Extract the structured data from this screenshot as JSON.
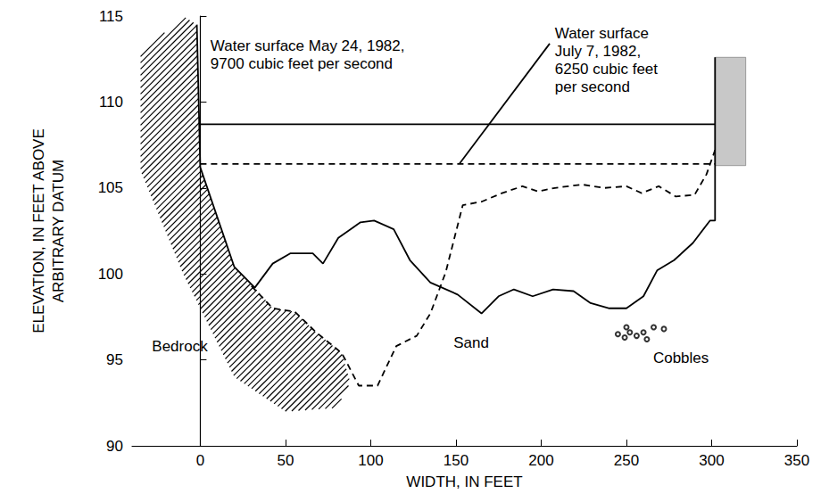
{
  "chart_data": {
    "type": "line",
    "x_label": "WIDTH, IN FEET",
    "y_label": "ELEVATION, IN FEET ABOVE\nARBITRARY DATUM",
    "xlim": [
      -40,
      350
    ],
    "xticks": [
      0,
      50,
      100,
      150,
      200,
      250,
      300,
      350
    ],
    "ylim": [
      90,
      115
    ],
    "yticks": [
      90,
      95,
      100,
      105,
      110,
      115
    ],
    "grid": false,
    "series": [
      {
        "x": [
          -2,
          0,
          20,
          32,
          42.5,
          53,
          66,
          72,
          81,
          94,
          102,
          113.5,
          123,
          135,
          151,
          165,
          175,
          184,
          195,
          207,
          219,
          229,
          240,
          250,
          260,
          268,
          278,
          289,
          299,
          302,
          302
        ],
        "values": [
          114.5,
          106.2,
          100.4,
          99.2,
          100.6,
          101.2,
          101.2,
          100.6,
          102.1,
          103,
          103.1,
          102.6,
          100.8,
          99.5,
          98.8,
          97.7,
          98.7,
          99.1,
          98.7,
          99.1,
          99,
          98.3,
          98,
          98,
          98.7,
          100.2,
          100.8,
          101.8,
          103.1,
          103.1,
          112.6
        ],
        "line_style": "solid",
        "color": "#000000"
      },
      {
        "x": [
          30,
          42.5,
          55.5,
          68,
          83,
          93,
          104,
          115,
          127,
          135,
          144,
          154,
          165,
          177,
          189,
          198,
          208,
          224,
          237,
          250,
          259,
          269,
          279,
          290,
          297,
          302
        ],
        "values": [
          99.3,
          98,
          97.8,
          96.6,
          95.4,
          93.5,
          93.5,
          95.8,
          96.4,
          97.7,
          100.1,
          104,
          104.2,
          104.7,
          105.1,
          104.8,
          105,
          105.2,
          105,
          105.1,
          104.7,
          105.1,
          104.5,
          104.6,
          105.8,
          107.2
        ],
        "line_style": "dashed",
        "color": "#000000"
      },
      {
        "x": [
          0,
          302
        ],
        "values": [
          108.7,
          108.7
        ],
        "line_style": "solid",
        "color": "#000000"
      },
      {
        "x": [
          0,
          302
        ],
        "values": [
          106.4,
          106.4
        ],
        "line_style": "dashed",
        "color": "#000000"
      },
      {
        "x": [
          152,
          205
        ],
        "values": [
          106.4,
          113.4
        ],
        "line_style": "solid",
        "color": "#000000"
      }
    ],
    "annotations": [
      {
        "text": "Water surface May 24, 1982,\n9700 cubic feet per second",
        "x": 6,
        "y": 113.8
      },
      {
        "text": "Water surface\nJuly 7, 1982,\n6250 cubic feet\nper second",
        "x": 208,
        "y": 114.5
      }
    ],
    "labels": [
      {
        "text": "Bedrock",
        "x": -12,
        "y": 95.8
      },
      {
        "text": "Sand",
        "x": 159,
        "y": 96
      },
      {
        "text": "Cobbles",
        "x": 282,
        "y": 95.1
      }
    ],
    "bedrock": [
      [
        -2,
        114.5
      ],
      [
        0,
        106.2
      ],
      [
        20,
        100.4
      ],
      [
        32,
        99.2
      ],
      [
        42.5,
        98
      ],
      [
        55.5,
        97.8
      ],
      [
        68,
        96.6
      ],
      [
        83,
        95.4
      ],
      [
        88,
        93.7
      ],
      [
        80,
        92.2
      ],
      [
        50,
        92
      ],
      [
        20,
        94
      ],
      [
        -10,
        100
      ],
      [
        -35,
        106
      ],
      [
        -35,
        112.8
      ],
      [
        -10,
        115
      ]
    ],
    "bank": [
      [
        302,
        112.6
      ],
      [
        320,
        112.6
      ],
      [
        320,
        106.3
      ],
      [
        302,
        106.3
      ]
    ],
    "cobbles": [
      [
        245,
        96.5
      ],
      [
        249,
        96.3
      ],
      [
        252,
        96.6
      ],
      [
        256,
        96.4
      ],
      [
        260,
        96.6
      ],
      [
        266,
        96.9
      ],
      [
        272,
        96.8
      ],
      [
        250,
        96.9
      ],
      [
        262,
        96.2
      ]
    ]
  }
}
